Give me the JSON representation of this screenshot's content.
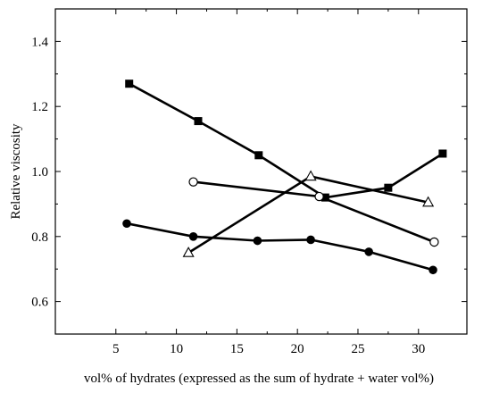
{
  "chart_data": {
    "type": "line",
    "title": "",
    "xlabel": "vol% of hydrates (expressed as the sum of hydrate + water vol%)",
    "ylabel": "Relative viscosity",
    "xlim": [
      0,
      34
    ],
    "ylim": [
      0.5,
      1.5
    ],
    "xticks": [
      5,
      10,
      15,
      20,
      25,
      30
    ],
    "yticks": [
      0.6,
      0.8,
      1.0,
      1.2,
      1.4
    ],
    "xtick_labels": [
      "5",
      "10",
      "15",
      "20",
      "25",
      "30"
    ],
    "ytick_labels": [
      "0.6",
      "0.8",
      "1.0",
      "1.2",
      "1.4"
    ],
    "grid": false,
    "series": [
      {
        "marker": "filled-square",
        "x": [
          6.1,
          11.8,
          16.8,
          22.3,
          27.5,
          32.0
        ],
        "y": [
          1.27,
          1.155,
          1.05,
          0.92,
          0.95,
          1.055
        ]
      },
      {
        "marker": "open-circle",
        "x": [
          11.4,
          21.8,
          31.3
        ],
        "y": [
          0.968,
          0.923,
          0.783
        ]
      },
      {
        "marker": "filled-circle",
        "x": [
          5.9,
          11.4,
          16.7,
          21.1,
          25.9,
          31.2
        ],
        "y": [
          0.84,
          0.8,
          0.787,
          0.79,
          0.753,
          0.697
        ]
      },
      {
        "marker": "open-triangle",
        "x": [
          11.0,
          21.1,
          30.8
        ],
        "y": [
          0.75,
          0.985,
          0.905
        ]
      }
    ]
  }
}
